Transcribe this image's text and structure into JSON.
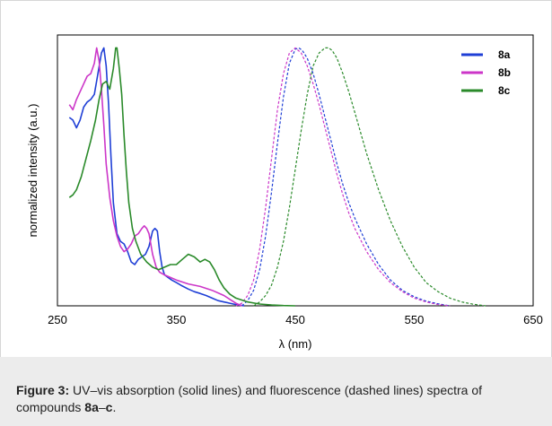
{
  "chart_data": {
    "type": "line",
    "xlabel": "λ (nm)",
    "ylabel": "normalized intensity (a.u.)",
    "xlim": [
      250,
      650
    ],
    "ylim": [
      0,
      1.05
    ],
    "x_ticks": [
      "250",
      "350",
      "450",
      "550",
      "650"
    ],
    "y_ticks": [],
    "grid": false,
    "legend_position": "top-right",
    "series": [
      {
        "name": "8a",
        "color": "#1f3fd6",
        "style": "solid",
        "kind": "absorption",
        "x": [
          260,
          263,
          266,
          269,
          272,
          275,
          278,
          281,
          284,
          287,
          289,
          291,
          293,
          295,
          297,
          300,
          303,
          306,
          309,
          312,
          315,
          318,
          321,
          324,
          327,
          330,
          332,
          334,
          336,
          338,
          340,
          343,
          346,
          350,
          355,
          360,
          365,
          370,
          375,
          380,
          385,
          390,
          395,
          400,
          404,
          407
        ],
        "y": [
          0.73,
          0.72,
          0.69,
          0.72,
          0.77,
          0.79,
          0.8,
          0.82,
          0.9,
          0.98,
          1.0,
          0.93,
          0.78,
          0.58,
          0.4,
          0.28,
          0.25,
          0.24,
          0.21,
          0.17,
          0.16,
          0.18,
          0.19,
          0.2,
          0.23,
          0.29,
          0.3,
          0.29,
          0.21,
          0.15,
          0.12,
          0.11,
          0.1,
          0.09,
          0.077,
          0.065,
          0.055,
          0.048,
          0.04,
          0.03,
          0.02,
          0.015,
          0.01,
          0.005,
          0.002,
          0.0
        ]
      },
      {
        "name": "8a",
        "color": "#1f3fd6",
        "style": "dashed",
        "kind": "fluorescence",
        "x": [
          405,
          410,
          415,
          420,
          425,
          430,
          435,
          440,
          445,
          450,
          453,
          456,
          460,
          465,
          470,
          475,
          480,
          485,
          490,
          495,
          500,
          510,
          520,
          530,
          540,
          550,
          560,
          570,
          580
        ],
        "y": [
          0.0,
          0.02,
          0.06,
          0.14,
          0.27,
          0.44,
          0.63,
          0.81,
          0.94,
          0.995,
          1.0,
          0.99,
          0.96,
          0.9,
          0.82,
          0.73,
          0.64,
          0.55,
          0.47,
          0.4,
          0.34,
          0.24,
          0.16,
          0.1,
          0.06,
          0.035,
          0.018,
          0.008,
          0.0
        ]
      },
      {
        "name": "8b",
        "color": "#cc36c8",
        "style": "solid",
        "kind": "absorption",
        "x": [
          260,
          263,
          266,
          269,
          272,
          275,
          278,
          281,
          283,
          285,
          287,
          289,
          291,
          294,
          297,
          300,
          303,
          306,
          309,
          312,
          315,
          318,
          321,
          323,
          325,
          327,
          330,
          333,
          336,
          340,
          345,
          350,
          360,
          370,
          380,
          390,
          395,
          400,
          405
        ],
        "y": [
          0.78,
          0.76,
          0.8,
          0.83,
          0.86,
          0.89,
          0.9,
          0.94,
          1.0,
          0.95,
          0.84,
          0.7,
          0.55,
          0.42,
          0.33,
          0.27,
          0.23,
          0.21,
          0.22,
          0.24,
          0.27,
          0.28,
          0.3,
          0.31,
          0.3,
          0.28,
          0.2,
          0.15,
          0.13,
          0.12,
          0.11,
          0.1,
          0.085,
          0.075,
          0.06,
          0.04,
          0.025,
          0.01,
          0.0
        ]
      },
      {
        "name": "8b",
        "color": "#cc36c8",
        "style": "dashed",
        "kind": "fluorescence",
        "x": [
          400,
          405,
          410,
          415,
          420,
          425,
          430,
          435,
          440,
          445,
          450,
          455,
          460,
          465,
          470,
          475,
          480,
          485,
          490,
          495,
          500,
          510,
          520,
          530,
          540,
          550,
          560,
          570,
          580
        ],
        "y": [
          0.0,
          0.01,
          0.04,
          0.1,
          0.22,
          0.38,
          0.57,
          0.76,
          0.9,
          0.98,
          1.0,
          0.98,
          0.93,
          0.86,
          0.78,
          0.69,
          0.6,
          0.51,
          0.43,
          0.36,
          0.3,
          0.21,
          0.14,
          0.09,
          0.055,
          0.03,
          0.015,
          0.005,
          0.0
        ]
      },
      {
        "name": "8c",
        "color": "#2a8a2a",
        "style": "solid",
        "kind": "absorption",
        "x": [
          260,
          263,
          266,
          270,
          274,
          278,
          282,
          285,
          288,
          291,
          294,
          297,
          299,
          300,
          302,
          304,
          306,
          308,
          310,
          313,
          316,
          320,
          325,
          330,
          335,
          340,
          345,
          350,
          355,
          360,
          365,
          370,
          374,
          378,
          382,
          386,
          390,
          395,
          400,
          410,
          420,
          430,
          440,
          450
        ],
        "y": [
          0.42,
          0.43,
          0.45,
          0.5,
          0.57,
          0.64,
          0.72,
          0.8,
          0.86,
          0.87,
          0.84,
          0.92,
          1.0,
          1.0,
          0.92,
          0.82,
          0.66,
          0.52,
          0.4,
          0.3,
          0.25,
          0.2,
          0.17,
          0.15,
          0.14,
          0.15,
          0.16,
          0.16,
          0.18,
          0.2,
          0.19,
          0.17,
          0.18,
          0.17,
          0.14,
          0.1,
          0.07,
          0.045,
          0.03,
          0.015,
          0.007,
          0.003,
          0.001,
          0.0
        ]
      },
      {
        "name": "8c",
        "color": "#2a8a2a",
        "style": "dashed",
        "kind": "fluorescence",
        "x": [
          415,
          420,
          425,
          430,
          435,
          440,
          445,
          450,
          455,
          460,
          465,
          470,
          475,
          478,
          481,
          485,
          490,
          495,
          500,
          505,
          510,
          520,
          530,
          540,
          550,
          560,
          570,
          580,
          590,
          600,
          610
        ],
        "y": [
          0.0,
          0.015,
          0.04,
          0.08,
          0.15,
          0.25,
          0.38,
          0.53,
          0.68,
          0.82,
          0.93,
          0.98,
          1.0,
          1.0,
          0.99,
          0.96,
          0.9,
          0.83,
          0.75,
          0.67,
          0.59,
          0.45,
          0.33,
          0.23,
          0.15,
          0.09,
          0.055,
          0.03,
          0.015,
          0.006,
          0.0
        ]
      }
    ],
    "legend": [
      {
        "label": "8a",
        "color": "#1f3fd6"
      },
      {
        "label": "8b",
        "color": "#cc36c8"
      },
      {
        "label": "8c",
        "color": "#2a8a2a"
      }
    ]
  },
  "caption": {
    "label": "Figure 3:",
    "text_1": " UV–vis absorption (solid lines) and fluorescence (dashed lines) spectra of compounds ",
    "cmpd_start": "8a",
    "dash": "–",
    "cmpd_end": "c",
    "end": "."
  }
}
